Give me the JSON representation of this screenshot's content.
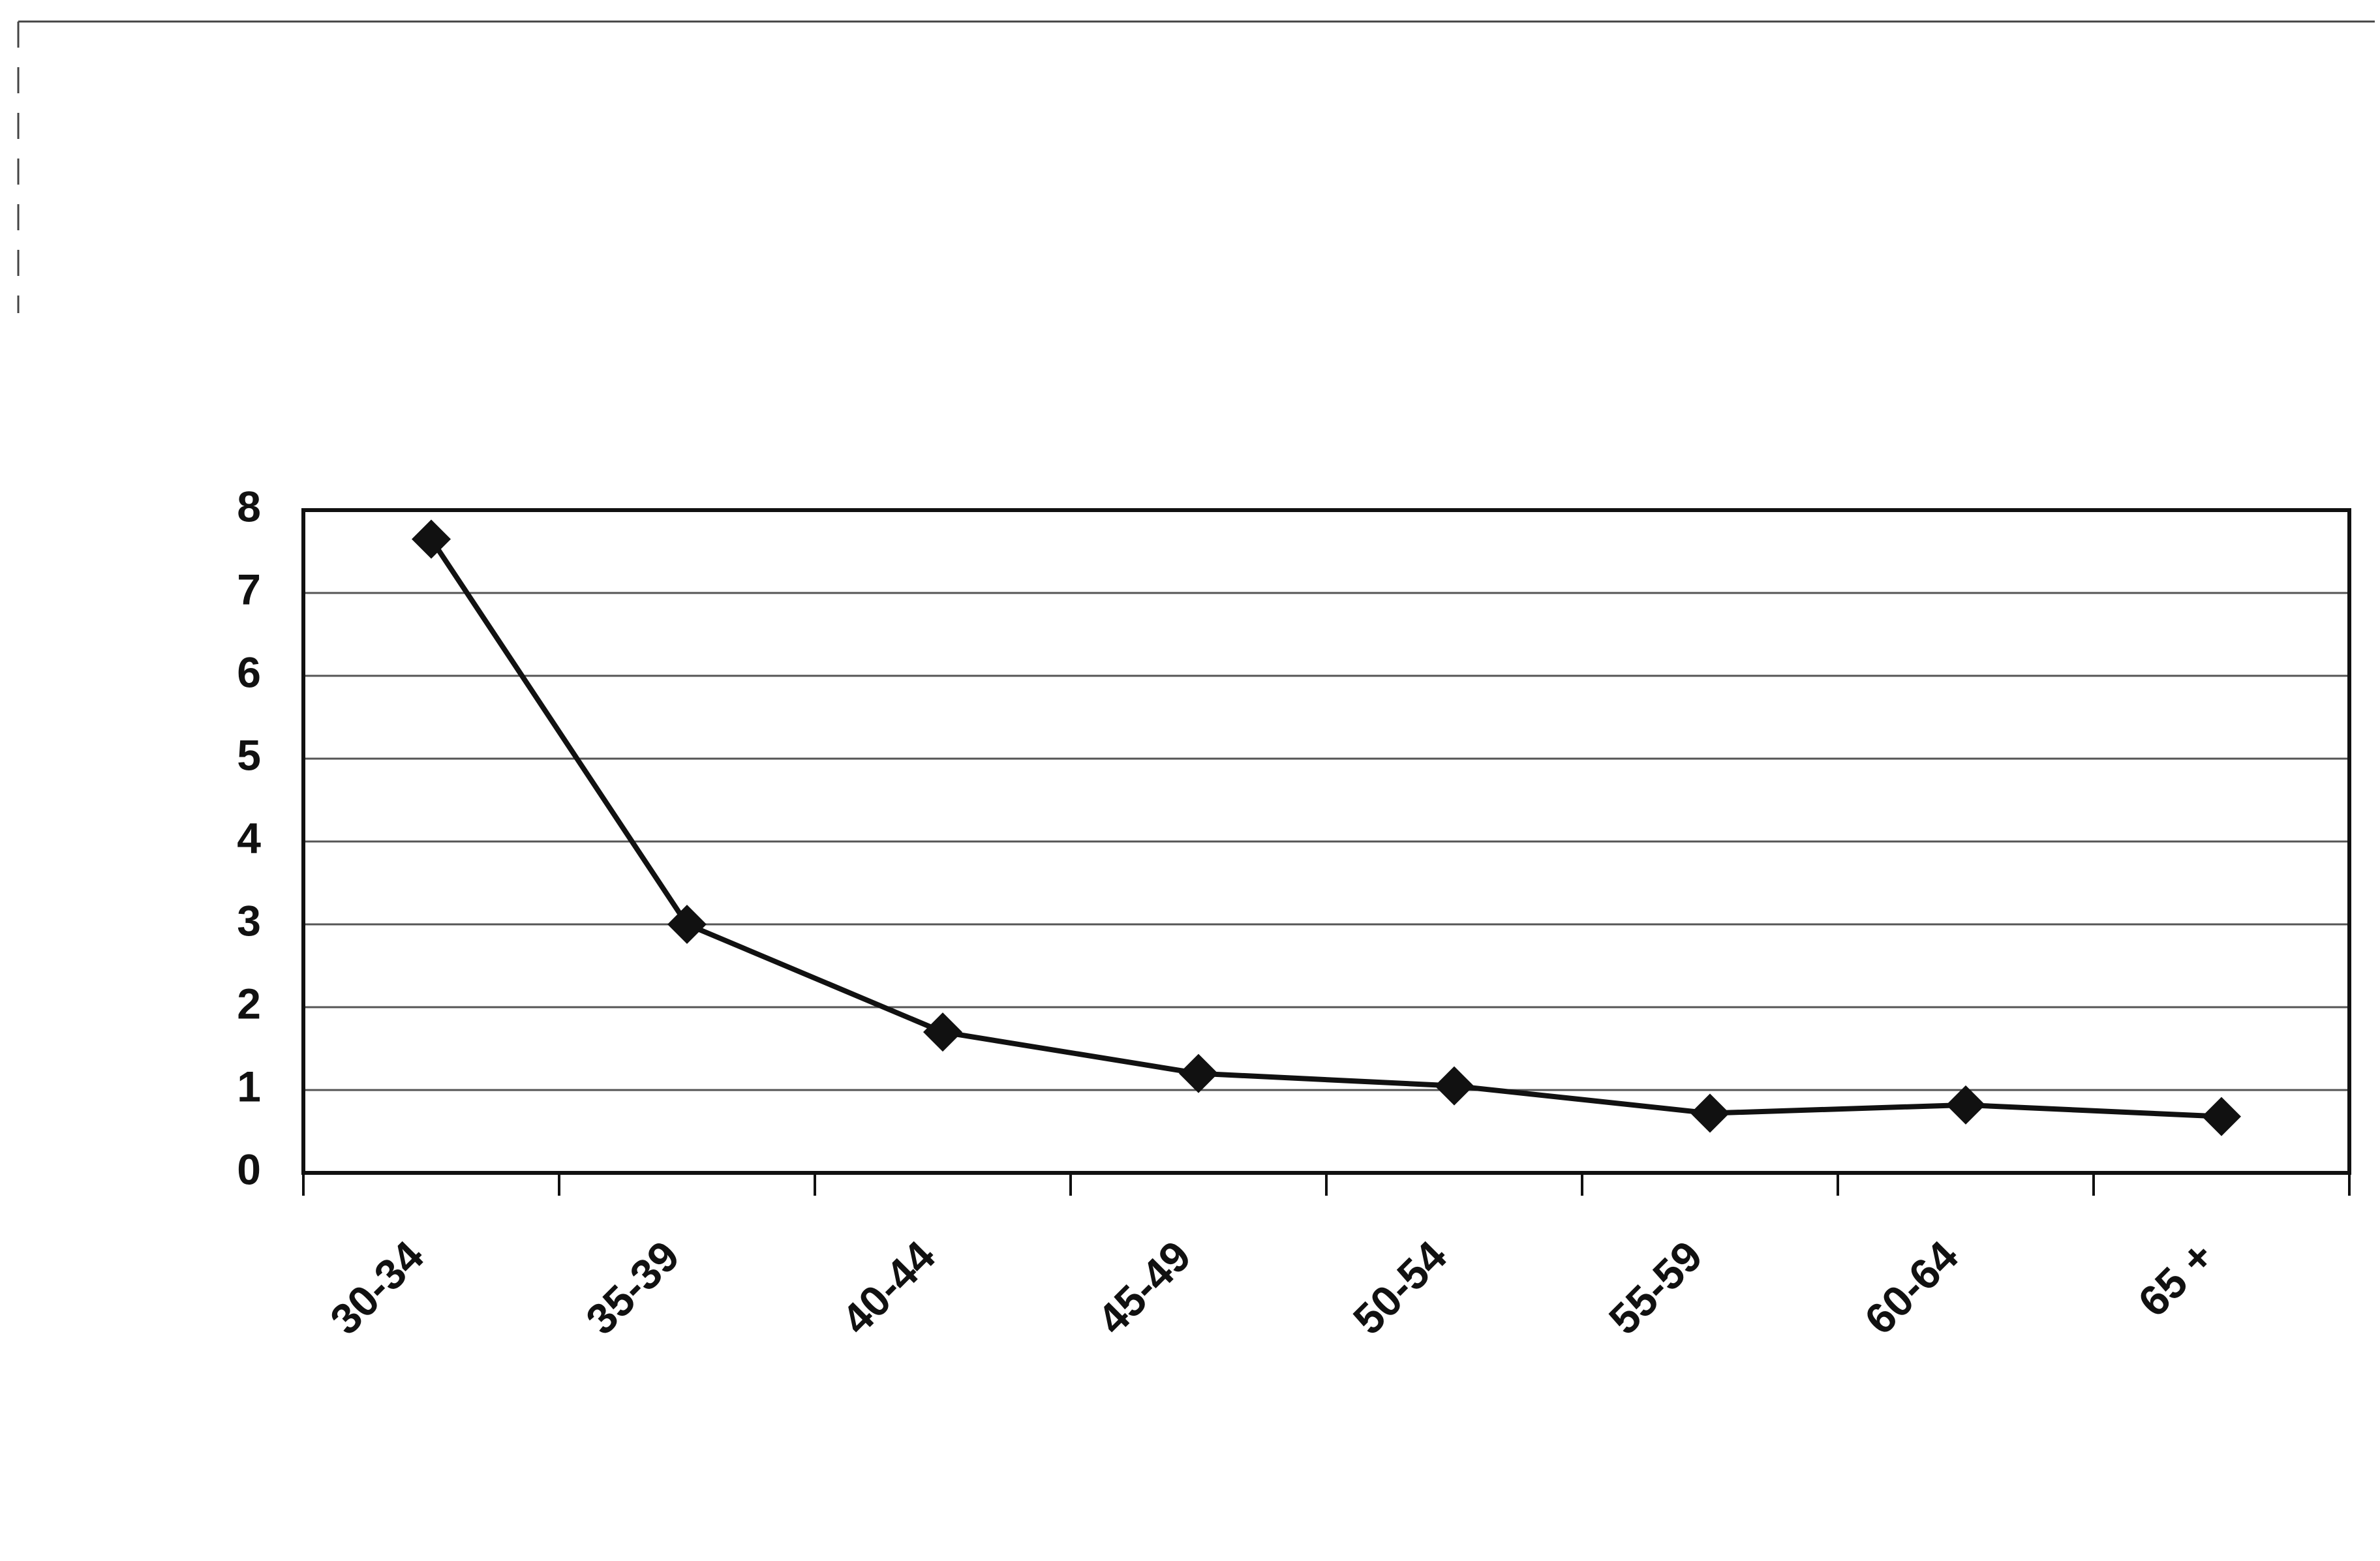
{
  "chart_data": {
    "type": "line",
    "categories": [
      "30-34",
      "35-39",
      "40-44",
      "45-49",
      "50-54",
      "55-59",
      "60-64",
      "65 +"
    ],
    "series": [
      {
        "name": null,
        "color": "#111111",
        "values": [
          7.65,
          3.0,
          1.7,
          1.2,
          1.05,
          0.72,
          0.82,
          0.68
        ]
      }
    ],
    "ylim": [
      0,
      8
    ],
    "yticks": [
      0,
      1,
      2,
      3,
      4,
      5,
      6,
      7,
      8
    ],
    "grid": true
  }
}
